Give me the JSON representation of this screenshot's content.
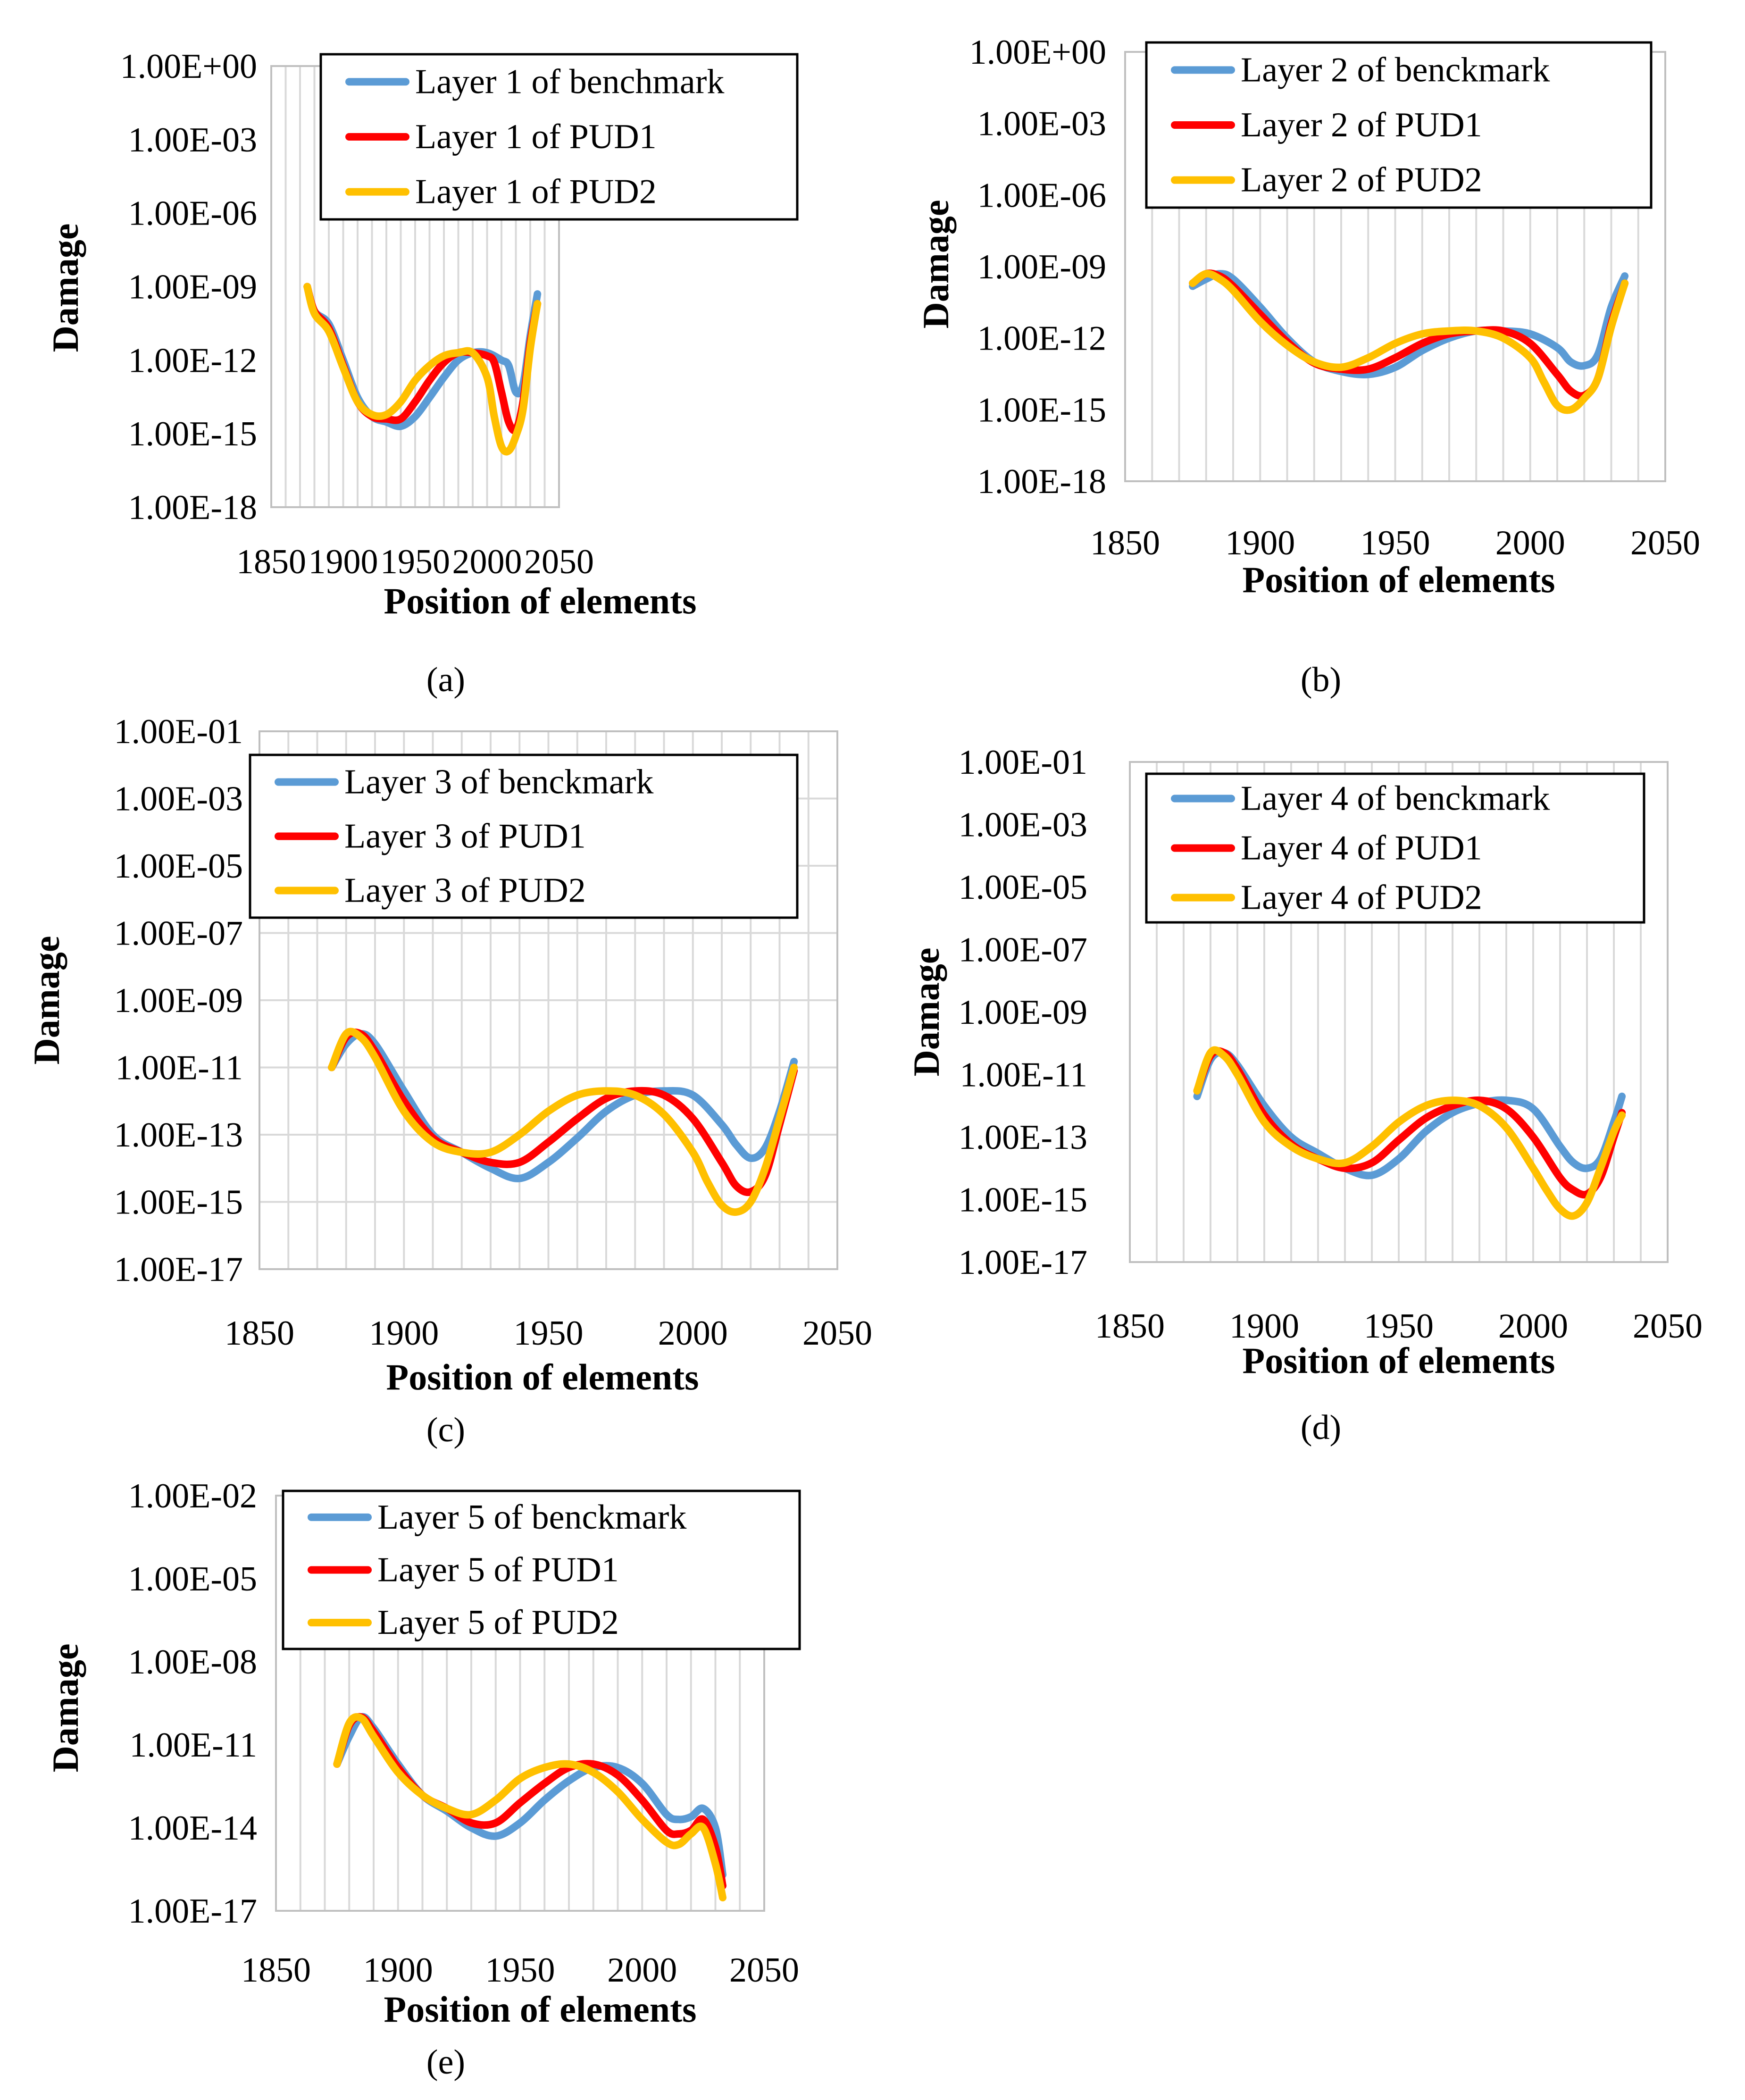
{
  "colors": {
    "benchmark": "#5b9bd5",
    "pud1": "#ff0000",
    "pud2": "#ffc000"
  },
  "chart_data": [
    {
      "type": "line",
      "caption": "(a)",
      "xlabel": "Position of elements",
      "ylabel": "Damage",
      "x_axis": {
        "ticks": [
          1850,
          1900,
          1950,
          2000,
          2050
        ],
        "labels": [
          "1850",
          "1900",
          "1950",
          "2000",
          "2050"
        ],
        "range": [
          1850,
          2050
        ]
      },
      "y_axis": {
        "scale": "log",
        "exp_range": [
          -18,
          0
        ],
        "labels": [
          "1.00E+00",
          "1.00E-03",
          "1.00E-06",
          "1.00E-09",
          "1.00E-12",
          "1.00E-15",
          "1.00E-18"
        ]
      },
      "grid": "vertical",
      "legend": "top",
      "series": [
        {
          "name": "Layer 1 of benchmark",
          "color": "#5b9bd5",
          "x": [
            1875,
            1880,
            1890,
            1900,
            1910,
            1920,
            1930,
            1940,
            1950,
            1960,
            1970,
            1980,
            1990,
            2000,
            2010,
            2015,
            2020,
            2025,
            2030,
            2035
          ],
          "y": [
            1e-09,
            1e-10,
            3e-11,
            1e-12,
            3e-14,
            5e-15,
            3e-15,
            2e-15,
            5e-15,
            3e-14,
            2e-13,
            1e-12,
            2e-12,
            2e-12,
            1e-12,
            6e-13,
            5e-14,
            1e-13,
            1e-11,
            5e-10
          ]
        },
        {
          "name": "Layer 1 of PUD1",
          "color": "#ff0000",
          "x": [
            1875,
            1880,
            1890,
            1900,
            1910,
            1920,
            1930,
            1940,
            1950,
            1960,
            1970,
            1980,
            1990,
            2000,
            2005,
            2010,
            2015,
            2020,
            2025,
            2030,
            2035
          ],
          "y": [
            1e-09,
            1e-10,
            2e-11,
            6e-13,
            2e-14,
            5e-15,
            4e-15,
            4e-15,
            2e-14,
            1.5e-13,
            8e-13,
            2e-12,
            2e-12,
            1.5e-12,
            8e-13,
            5e-14,
            3e-15,
            1.5e-15,
            2e-14,
            5e-12,
            2e-10
          ]
        },
        {
          "name": "Layer 1 of PUD2",
          "color": "#ffc000",
          "x": [
            1875,
            1880,
            1890,
            1900,
            1910,
            1920,
            1930,
            1940,
            1950,
            1960,
            1970,
            1980,
            1990,
            2000,
            2005,
            2010,
            2015,
            2020,
            2025,
            2030,
            2035
          ],
          "y": [
            1e-09,
            8e-11,
            1.5e-11,
            5e-13,
            2e-14,
            6e-15,
            6e-15,
            2e-14,
            1.5e-13,
            6e-13,
            1.5e-12,
            2e-12,
            2e-12,
            2e-13,
            5e-15,
            3e-16,
            2e-16,
            8e-16,
            1e-14,
            3e-12,
            2e-10
          ]
        }
      ]
    },
    {
      "type": "line",
      "caption": "(b)",
      "xlabel": "Position of elements",
      "ylabel": "Damage",
      "x_axis": {
        "ticks": [
          1850,
          1900,
          1950,
          2000,
          2050
        ],
        "labels": [
          "1850",
          "1900",
          "1950",
          "2000",
          "2050"
        ],
        "range": [
          1850,
          2050
        ]
      },
      "y_axis": {
        "scale": "log",
        "exp_range": [
          -18,
          0
        ],
        "labels": [
          "1.00E+00",
          "1.00E-03",
          "1.00E-06",
          "1.00E-09",
          "1.00E-12",
          "1.00E-15",
          "1.00E-18"
        ]
      },
      "grid": "vertical",
      "legend": "top",
      "series": [
        {
          "name": "Layer 2 of benckmark",
          "color": "#5b9bd5",
          "x": [
            1875,
            1880,
            1885,
            1890,
            1900,
            1910,
            1920,
            1930,
            1940,
            1950,
            1960,
            1970,
            1980,
            1990,
            2000,
            2010,
            2015,
            2020,
            2025,
            2030,
            2035
          ],
          "y": [
            1.5e-10,
            3e-10,
            5e-10,
            3e-10,
            2e-11,
            1e-12,
            1e-13,
            4e-14,
            3e-14,
            6e-14,
            3e-13,
            1e-12,
            2e-12,
            2e-12,
            1.5e-12,
            4e-13,
            1e-13,
            7e-14,
            2e-13,
            2e-11,
            4e-10
          ]
        },
        {
          "name": "Layer 2 of PUD1",
          "color": "#ff0000",
          "x": [
            1875,
            1880,
            1885,
            1890,
            1900,
            1910,
            1920,
            1930,
            1940,
            1950,
            1960,
            1970,
            1980,
            1990,
            2000,
            2010,
            2015,
            2020,
            2025,
            2030,
            2035
          ],
          "y": [
            2e-10,
            5e-10,
            4e-10,
            1.5e-10,
            1e-11,
            7e-13,
            9e-14,
            5e-14,
            5e-14,
            1.5e-13,
            6e-13,
            1.5e-12,
            2e-12,
            2e-12,
            6e-13,
            3e-14,
            6e-15,
            4e-15,
            2e-14,
            4e-12,
            2e-10
          ]
        },
        {
          "name": "Layer 2 of PUD2",
          "color": "#ffc000",
          "x": [
            1875,
            1880,
            1885,
            1890,
            1900,
            1910,
            1920,
            1930,
            1940,
            1950,
            1960,
            1970,
            1980,
            1990,
            2000,
            2005,
            2010,
            2015,
            2020,
            2025,
            2030,
            2035
          ],
          "y": [
            2e-10,
            5e-10,
            3e-10,
            1e-10,
            5e-12,
            5e-13,
            1e-13,
            6e-14,
            1.5e-13,
            6e-13,
            1.5e-12,
            2e-12,
            2e-12,
            1e-12,
            1.5e-13,
            1.5e-14,
            1.5e-15,
            1e-15,
            3e-15,
            2e-14,
            3e-12,
            2e-10
          ]
        }
      ]
    },
    {
      "type": "line",
      "caption": "(c)",
      "xlabel": "Position of elements",
      "ylabel": "Damage",
      "x_axis": {
        "ticks": [
          1850,
          1900,
          1950,
          2000,
          2050
        ],
        "labels": [
          "1850",
          "1900",
          "1950",
          "2000",
          "2050"
        ],
        "range": [
          1850,
          2050
        ]
      },
      "y_axis": {
        "scale": "log",
        "exp_range": [
          -17,
          -1
        ],
        "labels": [
          "1.00E-01",
          "1.00E-03",
          "1.00E-05",
          "1.00E-07",
          "1.00E-09",
          "1.00E-11",
          "1.00E-13",
          "1.00E-15",
          "1.00E-17"
        ]
      },
      "grid": "both",
      "legend": "top",
      "series": [
        {
          "name": "Layer 3 of benckmark",
          "color": "#5b9bd5",
          "x": [
            1875,
            1880,
            1885,
            1890,
            1900,
            1910,
            1920,
            1930,
            1940,
            1950,
            1960,
            1970,
            1980,
            1990,
            2000,
            2010,
            2015,
            2020,
            2025,
            2030,
            2035
          ],
          "y": [
            1e-11,
            5e-11,
            1e-10,
            5e-11,
            2e-12,
            1e-13,
            3e-14,
            1e-14,
            5e-15,
            1.5e-14,
            8e-14,
            5e-13,
            1.5e-12,
            2e-12,
            1.5e-12,
            2e-13,
            5e-14,
            2e-14,
            4e-14,
            5e-13,
            1.5e-11
          ]
        },
        {
          "name": "Layer 3 of PUD1",
          "color": "#ff0000",
          "x": [
            1875,
            1880,
            1885,
            1890,
            1900,
            1910,
            1920,
            1930,
            1940,
            1950,
            1960,
            1970,
            1980,
            1990,
            2000,
            2010,
            2015,
            2020,
            2025,
            2030,
            2035
          ],
          "y": [
            1e-11,
            8e-11,
            1e-10,
            3e-11,
            1e-12,
            8e-14,
            3e-14,
            1.5e-14,
            1.5e-14,
            6e-14,
            3e-13,
            1.2e-12,
            2e-12,
            1.5e-12,
            3e-13,
            1.5e-14,
            3e-15,
            2e-15,
            6e-15,
            2e-13,
            8e-12
          ]
        },
        {
          "name": "Layer 3 of PUD2",
          "color": "#ffc000",
          "x": [
            1875,
            1880,
            1885,
            1890,
            1900,
            1910,
            1920,
            1930,
            1940,
            1950,
            1960,
            1970,
            1980,
            1990,
            2000,
            2005,
            2010,
            2015,
            2020,
            2025,
            2030,
            2035
          ],
          "y": [
            1e-11,
            1e-10,
            8e-11,
            2e-11,
            5e-13,
            6e-14,
            3e-14,
            3e-14,
            1e-13,
            5e-13,
            1.5e-12,
            2e-12,
            1.5e-12,
            4e-13,
            3e-14,
            4e-15,
            8e-16,
            5e-16,
            1e-15,
            1e-14,
            3e-13,
            1e-11
          ]
        }
      ]
    },
    {
      "type": "line",
      "caption": "(d)",
      "xlabel": "Position of elements",
      "ylabel": "Damage",
      "x_axis": {
        "ticks": [
          1850,
          1900,
          1950,
          2000,
          2050
        ],
        "labels": [
          "1850",
          "1900",
          "1950",
          "2000",
          "2050"
        ],
        "range": [
          1850,
          2050
        ]
      },
      "y_axis": {
        "scale": "log",
        "exp_range": [
          -17,
          -1
        ],
        "labels": [
          "1.00E-01",
          "1.00E-03",
          "1.00E-05",
          "1.00E-07",
          "1.00E-09",
          "1.00E-11",
          "1.00E-13",
          "1.00E-15",
          "1.00E-17"
        ]
      },
      "grid": "vertical",
      "legend": "top",
      "series": [
        {
          "name": "Layer 4 of benckmark",
          "color": "#5b9bd5",
          "x": [
            1875,
            1880,
            1885,
            1890,
            1900,
            1910,
            1920,
            1930,
            1940,
            1950,
            1960,
            1970,
            1980,
            1990,
            2000,
            2010,
            2015,
            2020,
            2025,
            2030,
            2033
          ],
          "y": [
            2e-12,
            3e-11,
            5e-11,
            2e-11,
            1e-12,
            1e-13,
            3e-14,
            1e-14,
            6e-15,
            2e-14,
            1.5e-13,
            6e-13,
            1.2e-12,
            1.5e-12,
            8e-13,
            5e-14,
            1.5e-14,
            1e-14,
            2e-14,
            3e-13,
            2e-12
          ]
        },
        {
          "name": "Layer 4 of PUD1",
          "color": "#ff0000",
          "x": [
            1875,
            1880,
            1885,
            1890,
            1900,
            1910,
            1920,
            1930,
            1940,
            1950,
            1960,
            1970,
            1980,
            1990,
            2000,
            2010,
            2015,
            2020,
            2025,
            2030,
            2033
          ],
          "y": [
            3e-12,
            4e-11,
            5e-11,
            1.5e-11,
            5e-13,
            6e-14,
            2e-14,
            1e-14,
            1.5e-14,
            8e-14,
            4e-13,
            1e-12,
            1.5e-12,
            8e-13,
            1e-13,
            5e-15,
            2e-15,
            1.5e-15,
            5e-15,
            1e-13,
            6e-13
          ]
        },
        {
          "name": "Layer 4 of PUD2",
          "color": "#ffc000",
          "x": [
            1875,
            1880,
            1885,
            1890,
            1900,
            1910,
            1920,
            1930,
            1940,
            1950,
            1960,
            1970,
            1980,
            1990,
            2000,
            2005,
            2010,
            2015,
            2020,
            2025,
            2030,
            2033
          ],
          "y": [
            3e-12,
            5e-11,
            4e-11,
            1e-11,
            3e-13,
            5e-14,
            2e-14,
            1.5e-14,
            5e-14,
            3e-13,
            1e-12,
            1.5e-12,
            1e-12,
            2e-13,
            1e-14,
            2e-15,
            5e-16,
            3e-16,
            8e-16,
            1e-14,
            1.5e-13,
            5e-13
          ]
        }
      ]
    },
    {
      "type": "line",
      "caption": "(e)",
      "xlabel": "Position of elements",
      "ylabel": "Damage",
      "x_axis": {
        "ticks": [
          1850,
          1900,
          1950,
          2000,
          2050
        ],
        "labels": [
          "1850",
          "1900",
          "1950",
          "2000",
          "2050"
        ],
        "range": [
          1850,
          2050
        ]
      },
      "y_axis": {
        "scale": "log",
        "exp_range": [
          -17,
          -2
        ],
        "labels": [
          "1.00E-02",
          "1.00E-05",
          "1.00E-08",
          "1.00E-11",
          "1.00E-14",
          "1.00E-17"
        ]
      },
      "grid": "vertical",
      "legend": "top",
      "series": [
        {
          "name": "Layer 5 of benckmark",
          "color": "#5b9bd5",
          "x": [
            1875,
            1880,
            1885,
            1890,
            1900,
            1910,
            1920,
            1930,
            1940,
            1950,
            1960,
            1970,
            1980,
            1990,
            2000,
            2010,
            2015,
            2020,
            2025,
            2030,
            2033
          ],
          "y": [
            2e-12,
            2e-11,
            1e-10,
            4e-11,
            2e-12,
            1.5e-13,
            4e-14,
            1e-14,
            5e-15,
            1.5e-14,
            1e-13,
            5e-13,
            1.5e-12,
            1.5e-12,
            4e-13,
            3e-14,
            2e-14,
            2.5e-14,
            5e-14,
            1e-14,
            2e-16
          ]
        },
        {
          "name": "Layer 5 of PUD1",
          "color": "#ff0000",
          "x": [
            1875,
            1880,
            1885,
            1890,
            1900,
            1910,
            1920,
            1930,
            1940,
            1950,
            1960,
            1970,
            1980,
            1990,
            2000,
            2010,
            2015,
            2020,
            2025,
            2030,
            2033
          ],
          "y": [
            2e-12,
            5e-11,
            1e-10,
            3e-11,
            1.5e-12,
            1.5e-13,
            5e-14,
            1.5e-14,
            1.5e-14,
            8e-14,
            4e-13,
            1.5e-12,
            2e-12,
            8e-13,
            1e-13,
            8e-15,
            6e-15,
            8e-15,
            2e-14,
            2e-15,
            8e-17
          ]
        },
        {
          "name": "Layer 5 of PUD2",
          "color": "#ffc000",
          "x": [
            1875,
            1880,
            1885,
            1890,
            1900,
            1910,
            1920,
            1930,
            1940,
            1950,
            1960,
            1970,
            1980,
            1990,
            2000,
            2010,
            2015,
            2020,
            2025,
            2030,
            2033
          ],
          "y": [
            2e-12,
            6e-11,
            9e-11,
            2e-11,
            1e-12,
            1.5e-13,
            5e-14,
            3e-14,
            1e-13,
            6e-13,
            1.5e-12,
            2e-12,
            1e-12,
            2e-13,
            2e-14,
            3e-15,
            2.5e-15,
            6e-15,
            1e-14,
            5e-16,
            3e-17
          ]
        }
      ]
    }
  ]
}
